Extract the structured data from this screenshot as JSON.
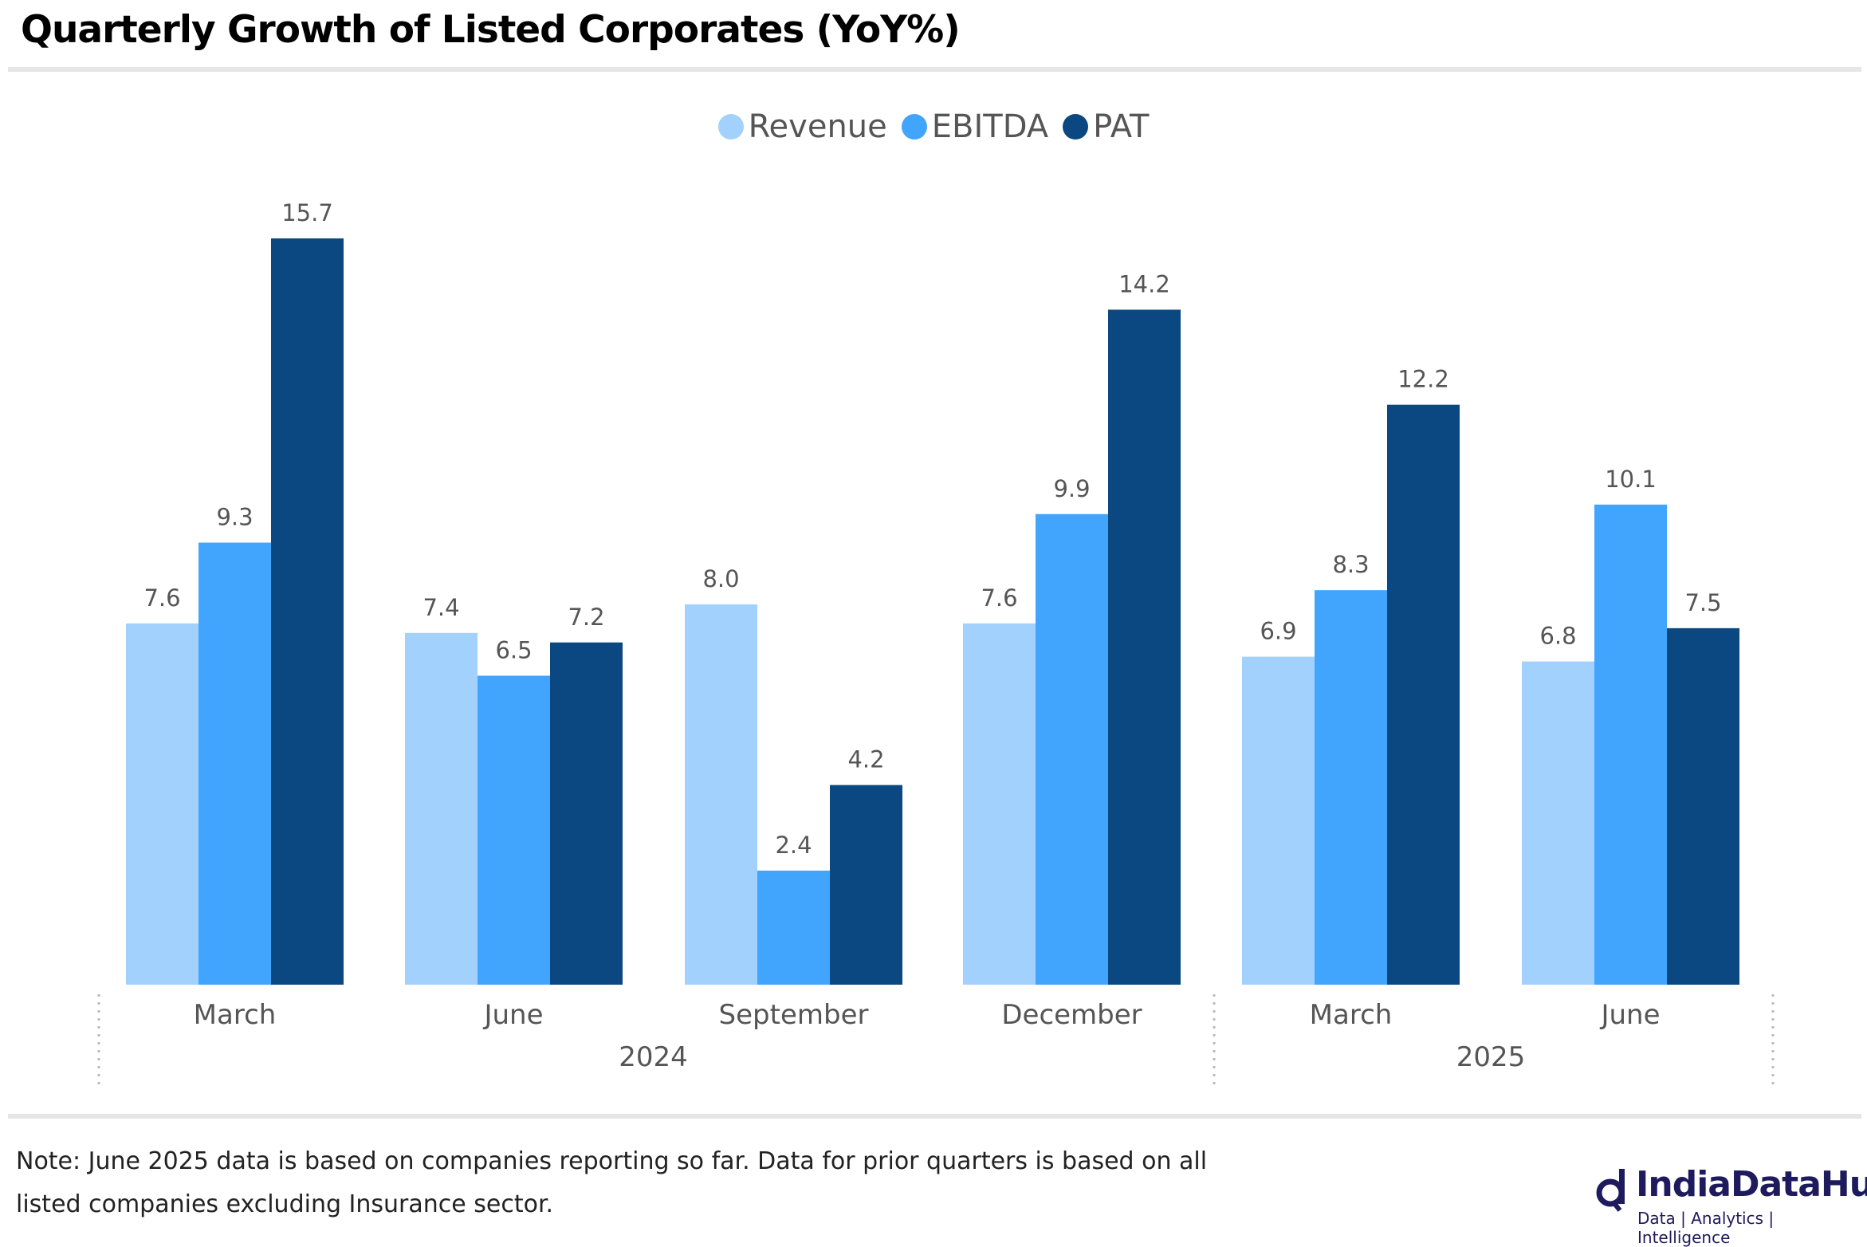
{
  "title": "Quarterly Growth of Listed Corporates (YoY%)",
  "note_line1": "Note: June 2025 data is based on companies reporting so far. Data for prior quarters is based on all",
  "note_line2": "listed companies excluding Insurance sector.",
  "logo": {
    "brand": "IndiaDataHub",
    "tagline": "Data | Analytics | Intelligence"
  },
  "chart_data": {
    "type": "bar",
    "title": "Quarterly Growth of Listed Corporates (YoY%)",
    "categories": [
      "March",
      "June",
      "September",
      "December",
      "March",
      "June"
    ],
    "years": [
      {
        "label": "2024",
        "span": [
          0,
          3
        ]
      },
      {
        "label": "2025",
        "span": [
          4,
          5
        ]
      }
    ],
    "series": [
      {
        "name": "Revenue",
        "color": "#a3d1fd",
        "values": [
          7.6,
          7.4,
          8.0,
          7.6,
          6.9,
          6.8
        ]
      },
      {
        "name": "EBITDA",
        "color": "#42a5fd",
        "values": [
          9.3,
          6.5,
          2.4,
          9.9,
          8.3,
          10.1
        ]
      },
      {
        "name": "PAT",
        "color": "#0b4780",
        "values": [
          15.7,
          7.2,
          4.2,
          14.2,
          12.2,
          7.5
        ]
      }
    ],
    "ylim": [
      0,
      15.7
    ],
    "legend": "top-center",
    "grid": false,
    "xlabel": "",
    "ylabel": ""
  }
}
